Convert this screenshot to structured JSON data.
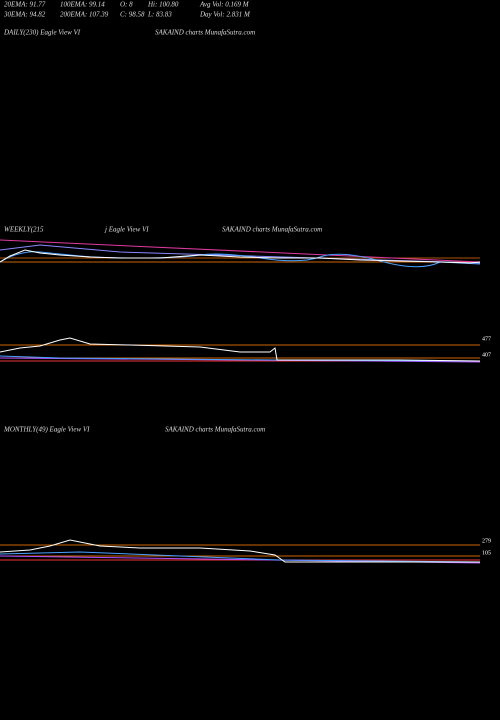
{
  "header": {
    "rows": [
      [
        "20EMA: 91.77",
        "100EMA: 99.14",
        "O: 8",
        "Hi: 100.80",
        "Avg Vol: 0.169 M"
      ],
      [
        "30EMA: 94.82",
        "200EMA: 107.39",
        "C: 98.58",
        "L: 83.83",
        "Day Vol: 2.831 M"
      ]
    ]
  },
  "panels": [
    {
      "label": "DAILY(230) Eagle  View  VI",
      "source": "SAKAIND charts MunafaSutra.com"
    },
    {
      "label": "WEEKLY(215",
      "label2": "j Eagle  View  VI",
      "source": "SAKAIND charts MunafaSutra.com",
      "price_labels": [
        "477",
        "407"
      ]
    },
    {
      "label": "MONTHLY(49) Eagle  View  VI",
      "source": "SAKAIND charts MunafaSutra.com",
      "price_labels": [
        "279",
        "105"
      ]
    }
  ]
}
